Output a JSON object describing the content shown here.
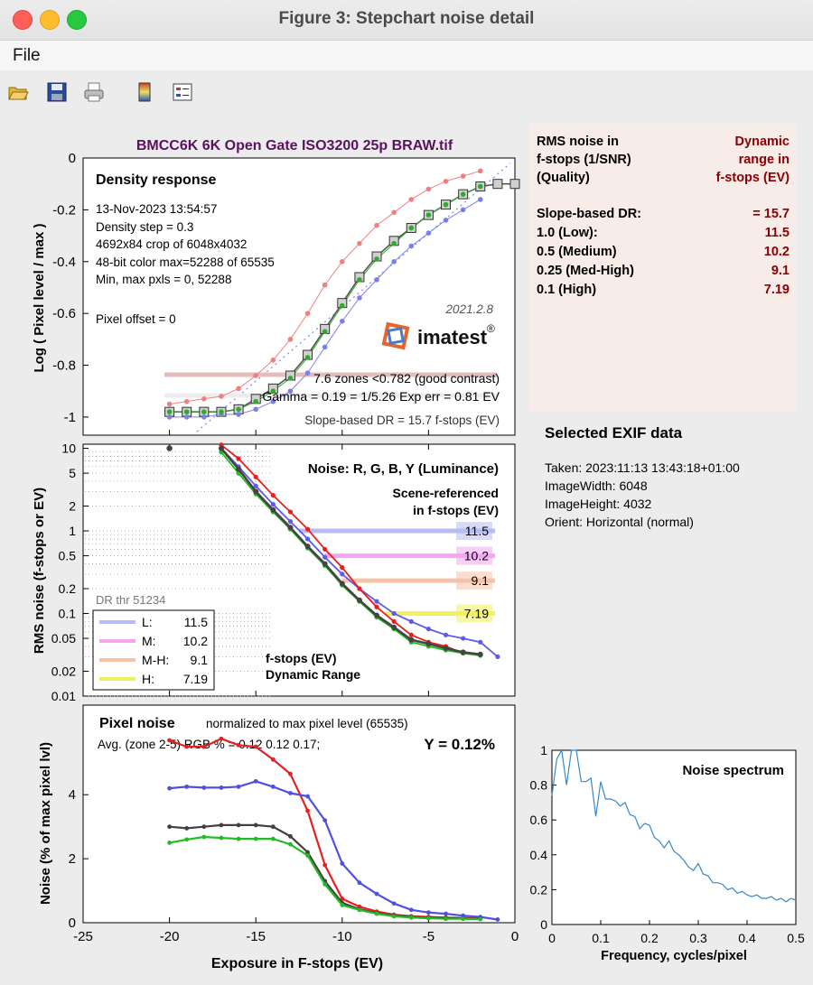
{
  "window": {
    "title": "Figure 3: Stepchart noise detail"
  },
  "menu": {
    "file": "File"
  },
  "toolbar": {
    "icons": [
      "open-folder-icon",
      "save-icon",
      "print-icon",
      "colorbar-icon",
      "legend-icon"
    ]
  },
  "figure": {
    "title": "BMCC6K 6K Open Gate ISO3200 25p BRAW.tif",
    "title_color": "#5b1060"
  },
  "density": {
    "heading": "Density response",
    "lines": [
      "13-Nov-2023 13:54:57",
      "Density step = 0.3",
      "4692x84 crop of 6048x4032",
      "48-bit color  max=52288 of 65535",
      "Min, max pxls = 0, 52288"
    ],
    "pixel_offset": "Pixel offset = 0",
    "version": "2021.2.8",
    "brand": "imatest",
    "brand_mark": "®",
    "zones": "7.6 zones <0.782 (good contrast)",
    "gamma": "Gamma = 0.19 = 1/5.26   Exp err = 0.81 EV",
    "slope_dr": "Slope-based DR = 15.7 f-stops (EV)",
    "ylabel": "Log ( Pixel level / max )",
    "yticks": [
      "0",
      "-0.2",
      "-0.4",
      "-0.6",
      "-0.8",
      "-1"
    ]
  },
  "noise": {
    "heading": "Noise: R, G, B, Y (Luminance)",
    "sub1": "Scene-referenced",
    "sub2": "in f-stops (EV)",
    "ylabel": "RMS noise (f-stops or EV)",
    "yticks": [
      "10",
      "5",
      "2",
      "1",
      "0.5",
      "0.2",
      "0.1",
      "0.05",
      "0.02",
      "0.01"
    ],
    "dr_thr": "DR thr 51234",
    "legend": [
      {
        "key": "L:",
        "val": "11.5",
        "color": "#b7bdf2"
      },
      {
        "key": "M:",
        "val": "10.2",
        "color": "#f4a6f4"
      },
      {
        "key": "M-H:",
        "val": "9.1",
        "color": "#f7c3a8"
      },
      {
        "key": "H:",
        "val": "7.19",
        "color": "#f3f05a"
      }
    ],
    "dr_tags": [
      "11.5",
      "10.2",
      "9.1",
      "7.19"
    ],
    "foot1": "f-stops (EV)",
    "foot2": "Dynamic Range"
  },
  "pixel": {
    "heading": "Pixel noise",
    "normalized": "normalized to max pixel level (65535)",
    "avg": "Avg. (zone 2-5) RGB % = 0.12  0.12  0.17;",
    "y": "Y = 0.12%",
    "ylabel": "Noise (% of max pixel lvl)",
    "yticks": [
      "0",
      "2",
      "4"
    ],
    "xlabel": "Exposure in F-stops (EV)",
    "xticks": [
      "-25",
      "-20",
      "-15",
      "-10",
      "-5",
      "0"
    ]
  },
  "info": {
    "left": [
      "RMS noise in",
      "f-stops (1/SNR)",
      "(Quality)"
    ],
    "right": [
      "Dynamic",
      "range in",
      "f-stops (EV)"
    ],
    "rows": [
      {
        "k": "Slope-based DR:",
        "v": "= 15.7"
      },
      {
        "k": "1.0   (Low):",
        "v": "11.5"
      },
      {
        "k": "0.5   (Medium)",
        "v": "10.2"
      },
      {
        "k": "0.25 (Med-High)",
        "v": "9.1"
      },
      {
        "k": "0.1   (High)",
        "v": "7.19"
      }
    ]
  },
  "exif": {
    "heading": "Selected EXIF data",
    "lines": [
      "Taken: 2023:11:13 13:43:18+01:00",
      "ImageWidth:  6048",
      "ImageHeight:  4032",
      "Orient: Horizontal (normal)"
    ]
  },
  "spectrum": {
    "title": "Noise spectrum",
    "xlabel": "Frequency, cycles/pixel",
    "xticks": [
      "0",
      "0.1",
      "0.2",
      "0.3",
      "0.4",
      "0.5"
    ],
    "yticks": [
      "0",
      "0.2",
      "0.4",
      "0.6",
      "0.8",
      "1"
    ]
  },
  "chart_data": [
    {
      "type": "line",
      "title": "Density response",
      "ylabel": "Log ( Pixel level / max )",
      "ylim": [
        -1.07,
        0
      ],
      "series": [
        {
          "name": "Y",
          "color": "#555555",
          "x": [
            -20,
            -19,
            -18,
            -17,
            -16,
            -15,
            -14,
            -13,
            -12,
            -11,
            -10,
            -9,
            -8,
            -7,
            -6,
            -5,
            -4,
            -3,
            -2,
            -1,
            0
          ],
          "values": [
            -0.98,
            -0.98,
            -0.98,
            -0.98,
            -0.97,
            -0.93,
            -0.89,
            -0.84,
            -0.76,
            -0.66,
            -0.56,
            -0.46,
            -0.38,
            -0.32,
            -0.27,
            -0.22,
            -0.18,
            -0.14,
            -0.11,
            -0.1,
            -0.1
          ]
        },
        {
          "name": "R",
          "color": "#f08080",
          "x": [
            -20,
            -19,
            -18,
            -17,
            -16,
            -15,
            -14,
            -13,
            -12,
            -11,
            -10,
            -9,
            -8,
            -7,
            -6,
            -5,
            -4,
            -3,
            -2
          ],
          "values": [
            -0.95,
            -0.94,
            -0.93,
            -0.92,
            -0.89,
            -0.84,
            -0.78,
            -0.7,
            -0.6,
            -0.49,
            -0.4,
            -0.33,
            -0.26,
            -0.21,
            -0.16,
            -0.12,
            -0.09,
            -0.07,
            -0.05
          ]
        },
        {
          "name": "B",
          "color": "#7b80e8",
          "x": [
            -20,
            -19,
            -18,
            -17,
            -16,
            -15,
            -14,
            -13,
            -12,
            -11,
            -10,
            -9,
            -8,
            -7,
            -6,
            -5,
            -4,
            -3,
            -2
          ],
          "values": [
            -1.0,
            -1.0,
            -1.0,
            -0.99,
            -0.99,
            -0.97,
            -0.94,
            -0.9,
            -0.83,
            -0.73,
            -0.63,
            -0.54,
            -0.47,
            -0.4,
            -0.34,
            -0.29,
            -0.24,
            -0.2,
            -0.16
          ]
        },
        {
          "name": "G",
          "color": "#2eaa2e",
          "x": [
            -20,
            -19,
            -18,
            -17,
            -16,
            -15,
            -14,
            -13,
            -12,
            -11,
            -10,
            -9,
            -8,
            -7,
            -6,
            -5,
            -4,
            -3,
            -2
          ],
          "values": [
            -0.98,
            -0.98,
            -0.98,
            -0.98,
            -0.97,
            -0.94,
            -0.9,
            -0.85,
            -0.77,
            -0.67,
            -0.57,
            -0.47,
            -0.39,
            -0.33,
            -0.27,
            -0.22,
            -0.18,
            -0.14,
            -0.11
          ]
        }
      ]
    },
    {
      "type": "line",
      "title": "Noise: R, G, B, Y (Luminance)",
      "ylabel": "RMS noise (f-stops or EV)",
      "scale": "log",
      "ylim": [
        0.01,
        10
      ],
      "series": [
        {
          "name": "B",
          "color": "#5c5ce6",
          "x": [
            -17,
            -16,
            -15,
            -14,
            -13,
            -12,
            -11,
            -10,
            -9,
            -8,
            -7,
            -6,
            -5,
            -4,
            -3,
            -2,
            -1
          ],
          "values": [
            10,
            6,
            3.5,
            2.1,
            1.3,
            0.8,
            0.48,
            0.3,
            0.2,
            0.14,
            0.1,
            0.08,
            0.065,
            0.055,
            0.05,
            0.045,
            0.03
          ]
        },
        {
          "name": "R",
          "color": "#e62020",
          "x": [
            -17,
            -16,
            -15,
            -14,
            -13,
            -12,
            -11,
            -10,
            -9,
            -8,
            -7,
            -6,
            -5,
            -4,
            -3,
            -2
          ],
          "values": [
            11,
            7.5,
            4.5,
            2.7,
            1.7,
            1.05,
            0.6,
            0.36,
            0.2,
            0.12,
            0.08,
            0.055,
            0.045,
            0.04,
            0.033,
            0.032
          ]
        },
        {
          "name": "G",
          "color": "#22bb22",
          "x": [
            -17,
            -16,
            -15,
            -14,
            -13,
            -12,
            -11,
            -10,
            -9,
            -8,
            -7,
            -6,
            -5,
            -4,
            -3,
            -2
          ],
          "values": [
            9,
            5,
            2.8,
            1.7,
            1.05,
            0.62,
            0.38,
            0.22,
            0.14,
            0.09,
            0.065,
            0.045,
            0.04,
            0.036,
            0.033,
            0.031
          ]
        },
        {
          "name": "Y",
          "color": "#444444",
          "x": [
            -17,
            -16,
            -15,
            -14,
            -13,
            -12,
            -11,
            -10,
            -9,
            -8,
            -7,
            -6,
            -5,
            -4,
            -3,
            -2
          ],
          "values": [
            10,
            5.6,
            3,
            1.8,
            1.1,
            0.65,
            0.4,
            0.23,
            0.145,
            0.095,
            0.068,
            0.048,
            0.043,
            0.038,
            0.034,
            0.032
          ]
        }
      ]
    },
    {
      "type": "line",
      "title": "Pixel noise",
      "xlabel": "Exposure in F-stops (EV)",
      "ylabel": "Noise (% of max pixel lvl)",
      "xlim": [
        -25,
        0
      ],
      "ylim": [
        0,
        6.8
      ],
      "series": [
        {
          "name": "R",
          "color": "#e62020",
          "x": [
            -20,
            -19,
            -18,
            -17,
            -16,
            -15,
            -14,
            -13,
            -12,
            -11,
            -10,
            -9,
            -8,
            -7,
            -6,
            -5,
            -4,
            -3,
            -2
          ],
          "values": [
            5.7,
            5.5,
            5.5,
            5.75,
            5.55,
            5.5,
            5.1,
            4.65,
            3.5,
            1.8,
            0.75,
            0.5,
            0.35,
            0.25,
            0.2,
            0.18,
            0.16,
            0.15,
            0.14
          ]
        },
        {
          "name": "B",
          "color": "#5050e0",
          "x": [
            -20,
            -19,
            -18,
            -17,
            -16,
            -15,
            -14,
            -13,
            -12,
            -11,
            -10,
            -9,
            -8,
            -7,
            -6,
            -5,
            -4,
            -3,
            -2,
            -1
          ],
          "values": [
            4.2,
            4.25,
            4.22,
            4.22,
            4.25,
            4.42,
            4.25,
            4.05,
            3.95,
            3.2,
            1.85,
            1.25,
            0.9,
            0.6,
            0.4,
            0.32,
            0.28,
            0.22,
            0.18,
            0.1
          ]
        },
        {
          "name": "Y",
          "color": "#404040",
          "x": [
            -20,
            -19,
            -18,
            -17,
            -16,
            -15,
            -14,
            -13,
            -12,
            -11,
            -10,
            -9,
            -8,
            -7,
            -6,
            -5,
            -4,
            -3,
            -2
          ],
          "values": [
            3.0,
            2.95,
            3.0,
            3.05,
            3.05,
            3.05,
            3.0,
            2.7,
            2.2,
            1.3,
            0.62,
            0.42,
            0.3,
            0.22,
            0.18,
            0.16,
            0.14,
            0.13,
            0.12
          ]
        },
        {
          "name": "G",
          "color": "#22bb22",
          "x": [
            -20,
            -19,
            -18,
            -17,
            -16,
            -15,
            -14,
            -13,
            -12,
            -11,
            -10,
            -9,
            -8,
            -7,
            -6,
            -5,
            -4,
            -3,
            -2
          ],
          "values": [
            2.5,
            2.6,
            2.68,
            2.65,
            2.62,
            2.62,
            2.62,
            2.45,
            2.1,
            1.2,
            0.55,
            0.4,
            0.28,
            0.2,
            0.16,
            0.14,
            0.12,
            0.12,
            0.11
          ]
        }
      ]
    },
    {
      "type": "line",
      "title": "Noise spectrum",
      "xlabel": "Frequency, cycles/pixel",
      "xlim": [
        0,
        0.5
      ],
      "ylim": [
        0,
        1
      ],
      "series": [
        {
          "color": "#3a87c8",
          "x": [
            0.0,
            0.01,
            0.02,
            0.03,
            0.04,
            0.05,
            0.06,
            0.07,
            0.08,
            0.09,
            0.1,
            0.11,
            0.12,
            0.13,
            0.14,
            0.15,
            0.16,
            0.17,
            0.18,
            0.19,
            0.2,
            0.21,
            0.22,
            0.23,
            0.24,
            0.25,
            0.26,
            0.27,
            0.28,
            0.29,
            0.3,
            0.31,
            0.32,
            0.33,
            0.34,
            0.35,
            0.36,
            0.37,
            0.38,
            0.39,
            0.4,
            0.41,
            0.42,
            0.43,
            0.44,
            0.45,
            0.46,
            0.47,
            0.48,
            0.49,
            0.5
          ],
          "values": [
            0.74,
            0.95,
            1.0,
            0.8,
            1.0,
            1.0,
            0.82,
            0.82,
            0.84,
            0.62,
            0.82,
            0.72,
            0.72,
            0.71,
            0.68,
            0.7,
            0.63,
            0.62,
            0.55,
            0.58,
            0.57,
            0.5,
            0.48,
            0.44,
            0.48,
            0.42,
            0.4,
            0.37,
            0.33,
            0.31,
            0.35,
            0.29,
            0.28,
            0.24,
            0.24,
            0.23,
            0.2,
            0.21,
            0.18,
            0.19,
            0.17,
            0.16,
            0.17,
            0.15,
            0.15,
            0.16,
            0.14,
            0.15,
            0.13,
            0.15,
            0.14
          ]
        }
      ]
    }
  ]
}
